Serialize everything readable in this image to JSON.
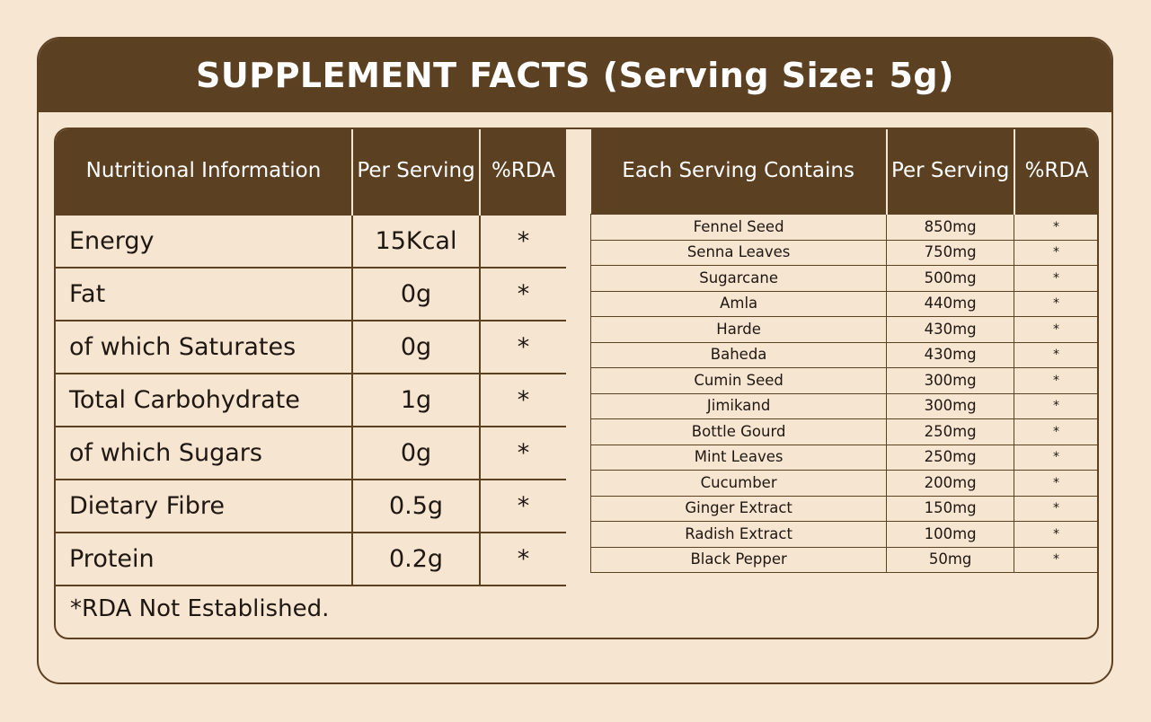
{
  "title": "SUPPLEMENT FACTS (Serving Size: 5g)",
  "nutrition": {
    "headers": [
      "Nutritional Information",
      "Per Serving",
      "%RDA"
    ],
    "rows": [
      {
        "name": "Energy",
        "value": "15Kcal",
        "rda": "*"
      },
      {
        "name": "Fat",
        "value": "0g",
        "rda": "*"
      },
      {
        "name": "of which Saturates",
        "value": "0g",
        "rda": "*"
      },
      {
        "name": "Total Carbohydrate",
        "value": "1g",
        "rda": "*"
      },
      {
        "name": "of which Sugars",
        "value": "0g",
        "rda": "*"
      },
      {
        "name": "Dietary Fibre",
        "value": "0.5g",
        "rda": "*"
      },
      {
        "name": "Protein",
        "value": "0.2g",
        "rda": "*"
      }
    ]
  },
  "ingredients": {
    "headers": [
      "Each Serving Contains",
      "Per Serving",
      "%RDA"
    ],
    "rows": [
      {
        "name": "Fennel Seed",
        "value": "850mg",
        "rda": "*"
      },
      {
        "name": "Senna Leaves",
        "value": "750mg",
        "rda": "*"
      },
      {
        "name": "Sugarcane",
        "value": "500mg",
        "rda": "*"
      },
      {
        "name": "Amla",
        "value": "440mg",
        "rda": "*"
      },
      {
        "name": "Harde",
        "value": "430mg",
        "rda": "*"
      },
      {
        "name": "Baheda",
        "value": "430mg",
        "rda": "*"
      },
      {
        "name": "Cumin Seed",
        "value": "300mg",
        "rda": "*"
      },
      {
        "name": "Jimikand",
        "value": "300mg",
        "rda": "*"
      },
      {
        "name": "Bottle Gourd",
        "value": "250mg",
        "rda": "*"
      },
      {
        "name": "Mint Leaves",
        "value": "250mg",
        "rda": "*"
      },
      {
        "name": "Cucumber",
        "value": "200mg",
        "rda": "*"
      },
      {
        "name": "Ginger Extract",
        "value": "150mg",
        "rda": "*"
      },
      {
        "name": "Radish Extract",
        "value": "100mg",
        "rda": "*"
      },
      {
        "name": "Black Pepper",
        "value": "50mg",
        "rda": "*"
      }
    ]
  },
  "footnote": "*RDA Not Established.",
  "colors": {
    "primary": "#5c4022",
    "background": "#f7e6d1"
  }
}
